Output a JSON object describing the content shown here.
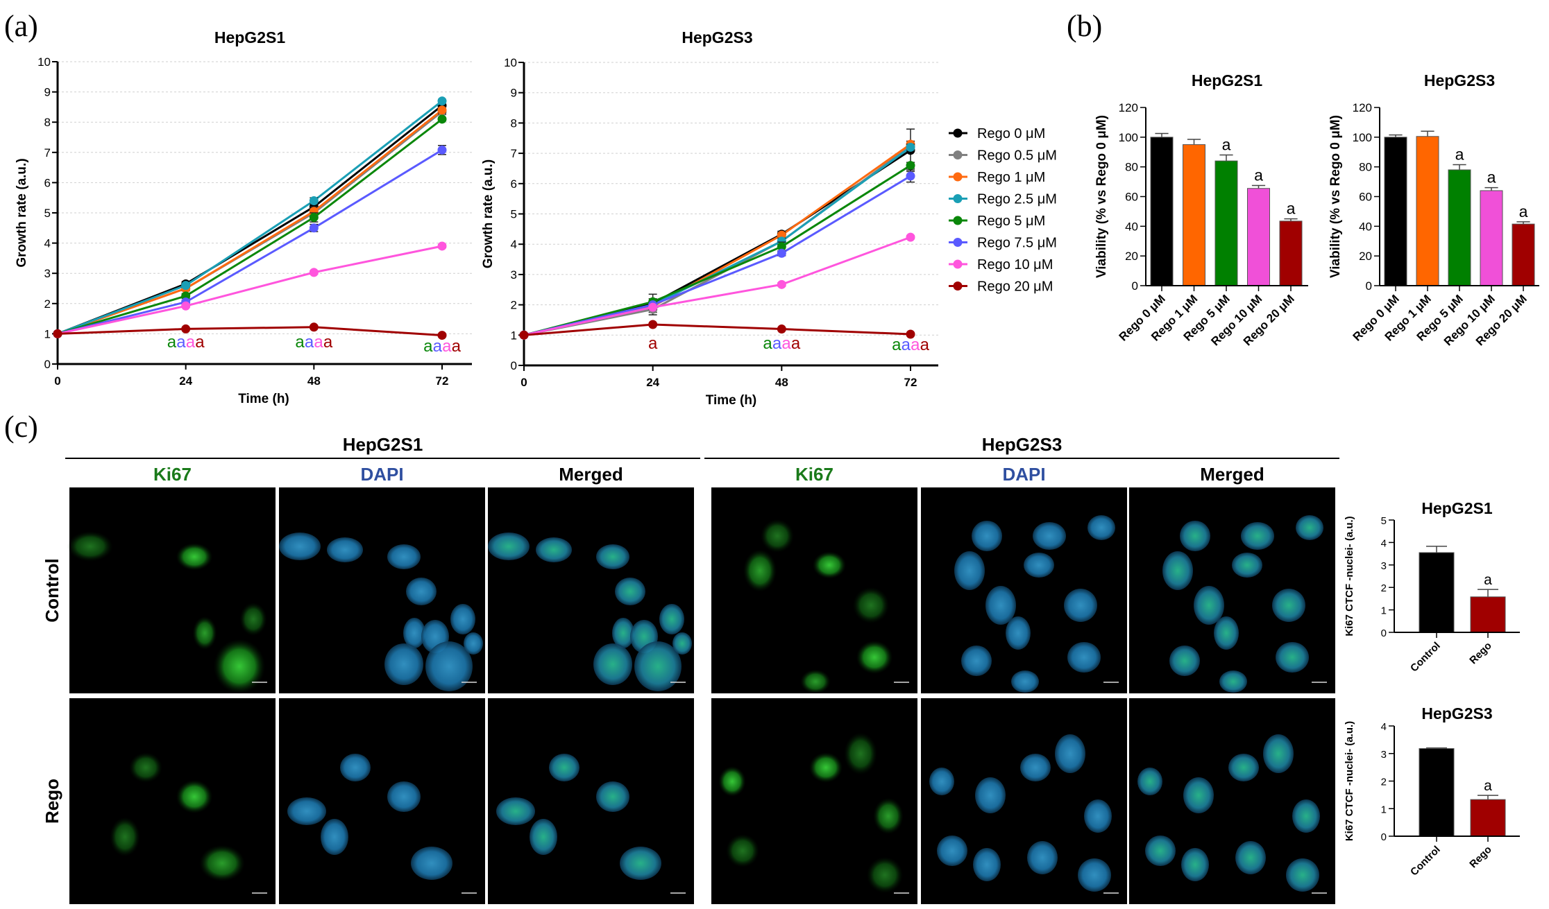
{
  "panel_labels": [
    "(a)",
    "(b)",
    "(c)"
  ],
  "line_legend": [
    {
      "name": "Rego 0 μM",
      "color": "#000000"
    },
    {
      "name": "Rego 0.5 μM",
      "color": "#808080"
    },
    {
      "name": "Rego 1 μM",
      "color": "#ff6a10"
    },
    {
      "name": "Rego 2.5 μM",
      "color": "#1a9fb5"
    },
    {
      "name": "Rego 5 μM",
      "color": "#0a870a"
    },
    {
      "name": "Rego 7.5 μM",
      "color": "#5a5aff"
    },
    {
      "name": "Rego 10 μM",
      "color": "#ff55dd"
    },
    {
      "name": "Rego 20 μM",
      "color": "#a00000"
    }
  ],
  "chart_data": [
    {
      "type": "line",
      "title": "HepG2S1",
      "xlabel": "Time (h)",
      "ylabel": "Growth rate (a.u.)",
      "x": [
        0,
        24,
        48,
        72
      ],
      "xticks": [
        "0",
        "24",
        "48",
        "72"
      ],
      "yticks": [
        "0",
        "1",
        "2",
        "3",
        "4",
        "5",
        "6",
        "7",
        "8",
        "9",
        "10"
      ],
      "ylim": [
        0,
        10
      ],
      "grid": true,
      "series": [
        {
          "values": [
            1,
            2.65,
            5.2,
            8.55
          ],
          "errors": [
            0,
            0.08,
            0.2,
            0.1
          ]
        },
        {
          "values": [
            1,
            2.5,
            5.0,
            8.35
          ],
          "errors": [
            0,
            0.08,
            0.15,
            0.1
          ]
        },
        {
          "values": [
            1,
            2.5,
            5.05,
            8.4
          ],
          "errors": [
            0,
            0.06,
            0.15,
            0.1
          ]
        },
        {
          "values": [
            1,
            2.6,
            5.4,
            8.7
          ],
          "errors": [
            0,
            0.06,
            0.1,
            0.05
          ]
        },
        {
          "values": [
            1,
            2.25,
            4.85,
            8.1
          ],
          "errors": [
            0,
            0.08,
            0.15,
            0.05
          ]
        },
        {
          "values": [
            1,
            2.05,
            4.5,
            7.08
          ],
          "errors": [
            0,
            0.06,
            0.12,
            0.15
          ]
        },
        {
          "values": [
            1,
            1.92,
            3.03,
            3.9
          ],
          "errors": [
            0,
            0.04,
            0.05,
            0.05
          ]
        },
        {
          "values": [
            1,
            1.16,
            1.22,
            0.95
          ],
          "errors": [
            0,
            0.03,
            0.03,
            0.03
          ]
        }
      ],
      "annotations": [
        {
          "x": 24,
          "letters": [
            "a",
            "a",
            "a",
            "a"
          ],
          "colors": [
            "#0a870a",
            "#5a5aff",
            "#ff55dd",
            "#a00000"
          ]
        },
        {
          "x": 48,
          "letters": [
            "a",
            "a",
            "a",
            "a"
          ],
          "colors": [
            "#0a870a",
            "#5a5aff",
            "#ff55dd",
            "#a00000"
          ]
        },
        {
          "x": 72,
          "letters": [
            "a",
            "a",
            "a",
            "a"
          ],
          "colors": [
            "#0a870a",
            "#5a5aff",
            "#ff55dd",
            "#a00000"
          ]
        }
      ]
    },
    {
      "type": "line",
      "title": "HepG2S3",
      "xlabel": "Time (h)",
      "ylabel": "Growth rate (a.u.)",
      "x": [
        0,
        24,
        48,
        72
      ],
      "xticks": [
        "0",
        "24",
        "48",
        "72"
      ],
      "yticks": [
        "0",
        "1",
        "2",
        "3",
        "4",
        "5",
        "6",
        "7",
        "8",
        "9",
        "10"
      ],
      "ylim": [
        0,
        10
      ],
      "grid": true,
      "series": [
        {
          "values": [
            1,
            2.05,
            4.33,
            7.1
          ],
          "errors": [
            0,
            0.3,
            0.1,
            0.7
          ]
        },
        {
          "values": [
            1,
            1.85,
            4.1,
            7.25
          ],
          "errors": [
            0,
            0.18,
            0.1,
            0.15
          ]
        },
        {
          "values": [
            1,
            1.95,
            4.3,
            7.3
          ],
          "errors": [
            0,
            0.1,
            0.1,
            0.1
          ]
        },
        {
          "values": [
            1,
            2.0,
            4.1,
            7.2
          ],
          "errors": [
            0,
            0.1,
            0.1,
            0.1
          ]
        },
        {
          "values": [
            1,
            2.1,
            3.92,
            6.6
          ],
          "errors": [
            0,
            0.1,
            0.15,
            0.1
          ]
        },
        {
          "values": [
            1,
            2.0,
            3.7,
            6.25
          ],
          "errors": [
            0,
            0.08,
            0.08,
            0.2
          ]
        },
        {
          "values": [
            1,
            1.92,
            2.67,
            4.23
          ],
          "errors": [
            0,
            0.05,
            0.05,
            0.05
          ]
        },
        {
          "values": [
            1,
            1.35,
            1.2,
            1.03
          ],
          "errors": [
            0,
            0.03,
            0.03,
            0.03
          ]
        }
      ],
      "annotations": [
        {
          "x": 24,
          "letters": [
            "a"
          ],
          "colors": [
            "#a00000"
          ]
        },
        {
          "x": 48,
          "letters": [
            "a",
            "a",
            "a",
            "a"
          ],
          "colors": [
            "#0a870a",
            "#5a5aff",
            "#ff55dd",
            "#a00000"
          ]
        },
        {
          "x": 72,
          "letters": [
            "a",
            "a",
            "a",
            "a"
          ],
          "colors": [
            "#0a870a",
            "#5a5aff",
            "#ff55dd",
            "#a00000"
          ]
        }
      ]
    },
    {
      "type": "bar",
      "title": "HepG2S1",
      "ylabel": "Viability (% vs Rego 0 μM)",
      "categories": [
        "Rego 0 μM",
        "Rego 1 μM",
        "Rego 5 μM",
        "Rego 10 μM",
        "Rego 20 μM"
      ],
      "values": [
        100,
        95,
        84,
        65.5,
        43.5
      ],
      "errors": [
        2.5,
        3.5,
        4,
        2,
        1.5
      ],
      "labels": [
        "",
        "",
        "a",
        "a",
        "a"
      ],
      "colors": [
        "#000000",
        "#ff6600",
        "#008000",
        "#f050d8",
        "#a00000"
      ],
      "yticks": [
        "0",
        "20",
        "40",
        "60",
        "80",
        "100",
        "120"
      ],
      "ylim": [
        0,
        120
      ]
    },
    {
      "type": "bar",
      "title": "HepG2S3",
      "ylabel": "Viability (% vs Rego 0 μM)",
      "categories": [
        "Rego 0 μM",
        "Rego 1 μM",
        "Rego 5 μM",
        "Rego 10 μM",
        "Rego 20 μM"
      ],
      "values": [
        100,
        100.5,
        78,
        64,
        41.5
      ],
      "errors": [
        1.5,
        3.5,
        3.5,
        2,
        1.5
      ],
      "labels": [
        "",
        "",
        "a",
        "a",
        "a"
      ],
      "colors": [
        "#000000",
        "#ff6600",
        "#008000",
        "#f050d8",
        "#a00000"
      ],
      "yticks": [
        "0",
        "20",
        "40",
        "60",
        "80",
        "100",
        "120"
      ],
      "ylim": [
        0,
        120
      ]
    },
    {
      "type": "bar",
      "title": "HepG2S1",
      "ylabel": "Ki67 CTCF -nuclei- (a.u.)",
      "categories": [
        "Control",
        "Rego"
      ],
      "values": [
        3.55,
        1.58
      ],
      "errors": [
        0.28,
        0.33
      ],
      "labels": [
        "",
        "a"
      ],
      "colors": [
        "#000000",
        "#a00000"
      ],
      "yticks": [
        "0",
        "1",
        "2",
        "3",
        "4",
        "5"
      ],
      "ylim": [
        0,
        5
      ]
    },
    {
      "type": "bar",
      "title": "HepG2S3",
      "ylabel": "Ki67 CTCF -nuclei- (a.u.)",
      "categories": [
        "Control",
        "Rego"
      ],
      "values": [
        3.18,
        1.33
      ],
      "errors": [
        0.02,
        0.15
      ],
      "labels": [
        "",
        "a"
      ],
      "colors": [
        "#000000",
        "#a00000"
      ],
      "yticks": [
        "0",
        "1",
        "2",
        "3",
        "4"
      ],
      "ylim": [
        0,
        4
      ]
    }
  ],
  "microscopy": {
    "groups": [
      {
        "title": "HepG2S1",
        "columns": [
          "Ki67",
          "DAPI",
          "Merged"
        ]
      },
      {
        "title": "HepG2S3",
        "columns": [
          "Ki67",
          "DAPI",
          "Merged"
        ]
      }
    ],
    "column_colors": [
      "#1a7a1a",
      "#2f4fa0",
      "#000000"
    ],
    "rows": [
      "Control",
      "Rego"
    ]
  }
}
